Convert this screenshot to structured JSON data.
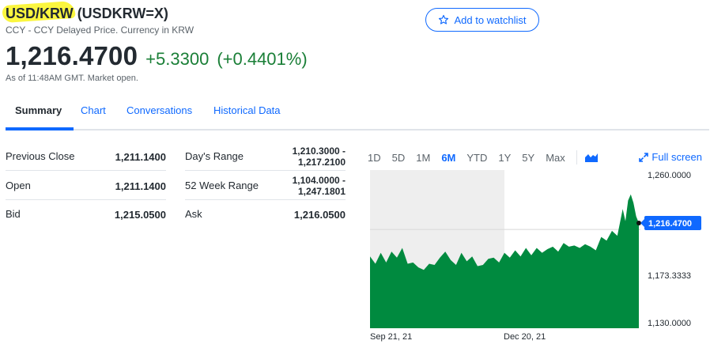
{
  "header": {
    "ticker_highlight": "USD/KRW",
    "ticker_symbol": "(USDKRW=X)",
    "subtitle": "CCY - CCY Delayed Price. Currency in KRW",
    "watchlist_label": "Add to watchlist"
  },
  "quote": {
    "price": "1,216.4700",
    "change": "+5.3300",
    "change_pct": "(+0.4401%)",
    "as_of": "As of 11:48AM GMT. Market open.",
    "change_color": "#1a7f37"
  },
  "tabs": [
    {
      "label": "Summary",
      "active": true
    },
    {
      "label": "Chart"
    },
    {
      "label": "Conversations"
    },
    {
      "label": "Historical Data"
    }
  ],
  "stats": [
    {
      "label1": "Previous Close",
      "value1": "1,211.1400",
      "label2": "Day's Range",
      "value2a": "1,210.3000 -",
      "value2b": "1,217.2100"
    },
    {
      "label1": "Open",
      "value1": "1,211.1400",
      "label2": "52 Week Range",
      "value2a": "1,104.0000 -",
      "value2b": "1,247.1801"
    },
    {
      "label1": "Bid",
      "value1": "1,215.0500",
      "label2": "Ask",
      "value2a": "1,216.0500",
      "value2b": ""
    }
  ],
  "chart_controls": {
    "ranges": [
      "1D",
      "5D",
      "1M",
      "6M",
      "YTD",
      "1Y",
      "5Y",
      "Max"
    ],
    "active_range": "6M",
    "chart_type_icon": "mountain-chart-icon",
    "fullscreen_label": "Full screen",
    "accent_color": "#0f69ff"
  },
  "chart_data": {
    "type": "area",
    "y_ticks": [
      "1,260.0000",
      "1,173.3333",
      "1,130.0000"
    ],
    "y_tick_values": [
      1260,
      1173.3333,
      1130
    ],
    "x_ticks": [
      "Sep 21, 21",
      "Dec 20, 21"
    ],
    "x_tick_positions": [
      0.0,
      0.5
    ],
    "ylim": [
      1130,
      1260
    ],
    "current_label": "1,216.4700",
    "current_value": 1216.47,
    "previous_close": 1211.14,
    "fill_color": "#008a3f",
    "x": [
      0,
      0.02,
      0.04,
      0.06,
      0.08,
      0.1,
      0.12,
      0.14,
      0.16,
      0.18,
      0.2,
      0.22,
      0.24,
      0.26,
      0.28,
      0.3,
      0.32,
      0.34,
      0.36,
      0.38,
      0.4,
      0.42,
      0.44,
      0.46,
      0.48,
      0.5,
      0.52,
      0.54,
      0.56,
      0.58,
      0.6,
      0.62,
      0.64,
      0.66,
      0.68,
      0.7,
      0.72,
      0.74,
      0.76,
      0.78,
      0.8,
      0.82,
      0.84,
      0.86,
      0.88,
      0.9,
      0.92,
      0.94,
      0.95,
      0.96,
      0.97,
      0.98,
      0.99,
      1.0
    ],
    "values": [
      1189,
      1183,
      1192,
      1184,
      1193,
      1188,
      1196,
      1183,
      1184,
      1180,
      1178,
      1183,
      1182,
      1188,
      1193,
      1186,
      1182,
      1192,
      1185,
      1189,
      1181,
      1182,
      1187,
      1188,
      1184,
      1192,
      1188,
      1194,
      1189,
      1196,
      1190,
      1196,
      1192,
      1195,
      1197,
      1193,
      1200,
      1197,
      1198,
      1196,
      1199,
      1197,
      1194,
      1205,
      1202,
      1210,
      1206,
      1228,
      1218,
      1235,
      1240,
      1233,
      1222,
      1216.47
    ]
  }
}
